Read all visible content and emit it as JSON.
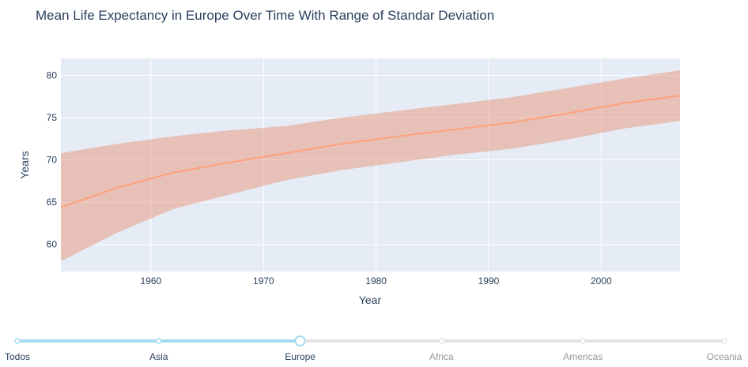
{
  "chart_data": {
    "type": "line",
    "title": "Mean Life Expectancy in Europe Over Time With Range of Standar Deviation",
    "xlabel": "Year",
    "ylabel": "Years",
    "xlim": [
      1952,
      2007
    ],
    "ylim": [
      56.8,
      82
    ],
    "x_ticks": [
      1960,
      1970,
      1980,
      1990,
      2000
    ],
    "y_ticks": [
      60,
      65,
      70,
      75,
      80
    ],
    "grid": true,
    "x": [
      1952,
      1957,
      1962,
      1967,
      1972,
      1977,
      1982,
      1987,
      1992,
      1997,
      2002,
      2007
    ],
    "series": [
      {
        "values": [
          64.4,
          66.7,
          68.5,
          69.7,
          70.8,
          71.9,
          72.8,
          73.6,
          74.4,
          75.5,
          76.7,
          77.6
        ]
      }
    ],
    "band_upper": [
      70.8,
      71.9,
      72.8,
      73.5,
      74.0,
      75.0,
      75.8,
      76.6,
      77.4,
      78.5,
      79.6,
      80.6
    ],
    "band_lower": [
      58.0,
      61.4,
      64.2,
      65.9,
      67.6,
      68.8,
      69.7,
      70.6,
      71.3,
      72.4,
      73.7,
      74.6
    ],
    "colors": {
      "line": "#ffa07a",
      "band": "rgba(233,150,122,0.5)",
      "plot_bg": "#e5ecf6",
      "grid": "#ffffff",
      "text": "#2a3f5f"
    }
  },
  "slider": {
    "steps": [
      "Todos",
      "Asia",
      "Europe",
      "Africa",
      "Americas",
      "Oceania"
    ],
    "active_index": 2,
    "colors": {
      "active_track": "#a3dcef",
      "inactive_track": "#e3e3e3",
      "active_label": "#2a3f5f",
      "inactive_label": "#999999",
      "knob": "#ffffff"
    }
  }
}
